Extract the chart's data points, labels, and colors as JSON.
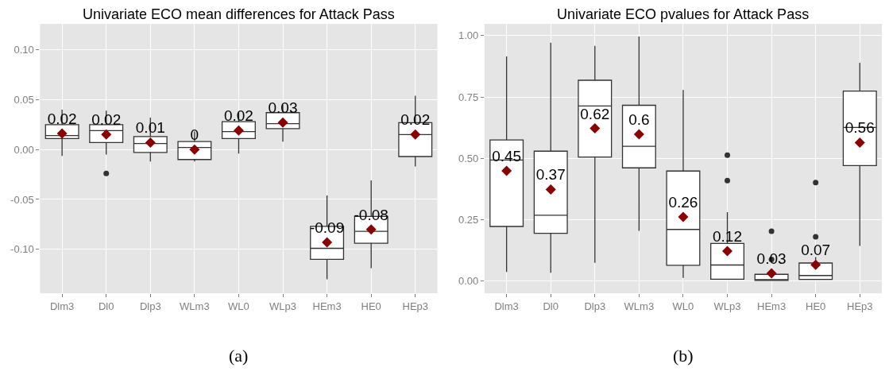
{
  "chart_data": [
    {
      "type": "box",
      "title": "Univariate ECO mean differences for Attack Pass",
      "categories": [
        "Dlm3",
        "Dl0",
        "Dlp3",
        "WLm3",
        "WL0",
        "WLp3",
        "HEm3",
        "HE0",
        "HEp3"
      ],
      "ylim": [
        -0.144,
        0.126
      ],
      "yticks": [
        {
          "value": -0.1,
          "label": "-0.10"
        },
        {
          "value": -0.05,
          "label": "-0.05"
        },
        {
          "value": 0,
          "label": "0.00"
        },
        {
          "value": 0.05,
          "label": "0.05"
        },
        {
          "value": 0.1,
          "label": "0.10"
        }
      ],
      "grid": true,
      "annotations": [
        "(a)"
      ],
      "series": [
        {
          "color": "#333333",
          "boxes": [
            {
              "low": -0.0065,
              "q1": 0.011,
              "median": 0.014,
              "q3": 0.025,
              "high": 0.04
            },
            {
              "low": -0.005,
              "q1": 0.007,
              "median": 0.019,
              "q3": 0.025,
              "high": 0.039,
              "outliers": [
                -0.024
              ]
            },
            {
              "low": -0.012,
              "q1": -0.003,
              "median": 0.006,
              "q3": 0.013,
              "high": 0.032
            },
            {
              "low": -0.012,
              "q1": -0.01,
              "median": 0.002,
              "q3": 0.008,
              "high": 0.018
            },
            {
              "low": -0.004,
              "q1": 0.011,
              "median": 0.018,
              "q3": 0.028,
              "high": 0.037
            },
            {
              "low": 0.008,
              "q1": 0.021,
              "median": 0.026,
              "q3": 0.037,
              "high": 0.045
            },
            {
              "low": -0.13,
              "q1": -0.11,
              "median": -0.099,
              "q3": -0.077,
              "high": -0.046
            },
            {
              "low": -0.119,
              "q1": -0.094,
              "median": -0.082,
              "q3": -0.067,
              "high": -0.031
            },
            {
              "low": -0.017,
              "q1": -0.007,
              "median": 0.015,
              "q3": 0.027,
              "high": 0.054
            }
          ]
        },
        {
          "type": "scatter",
          "color": "#8b0000",
          "marker": "diamond",
          "values": [
            0.016,
            0.015,
            0.007,
            0.0,
            0.019,
            0.027,
            -0.093,
            -0.08,
            0.015
          ],
          "value_labels": [
            "0.02",
            "0.02",
            "0.01",
            "0",
            "0.02",
            "0.03",
            "-0.09",
            "-0.08",
            "0.02"
          ]
        }
      ]
    },
    {
      "type": "box",
      "title": "Univariate ECO pvalues for Attack Pass",
      "categories": [
        "Dlm3",
        "Dl0",
        "Dlp3",
        "WLm3",
        "WL0",
        "WLp3",
        "HEm3",
        "HE0",
        "HEp3"
      ],
      "ylim": [
        -0.05,
        1.048
      ],
      "yticks": [
        {
          "value": 0,
          "label": "0.00"
        },
        {
          "value": 0.25,
          "label": "0.25"
        },
        {
          "value": 0.5,
          "label": "0.50"
        },
        {
          "value": 0.75,
          "label": "0.75"
        },
        {
          "value": 1,
          "label": "1.00"
        }
      ],
      "grid": true,
      "annotations": [
        "(b)"
      ],
      "series": [
        {
          "color": "#333333",
          "boxes": [
            {
              "low": 0.037,
              "q1": 0.222,
              "median": 0.493,
              "q3": 0.575,
              "high": 0.915
            },
            {
              "low": 0.033,
              "q1": 0.194,
              "median": 0.268,
              "q3": 0.529,
              "high": 0.971
            },
            {
              "low": 0.074,
              "q1": 0.505,
              "median": 0.713,
              "q3": 0.818,
              "high": 0.958
            },
            {
              "low": 0.204,
              "q1": 0.461,
              "median": 0.549,
              "q3": 0.716,
              "high": 0.996
            },
            {
              "low": 0.012,
              "q1": 0.064,
              "median": 0.21,
              "q3": 0.448,
              "high": 0.778
            },
            {
              "low": 0.007,
              "q1": 0.007,
              "median": 0.065,
              "q3": 0.153,
              "high": 0.28,
              "outliers": [
                0.513,
                0.409
              ]
            },
            {
              "low": 0.001,
              "q1": 0.002,
              "median": 0.005,
              "q3": 0.027,
              "high": 0.05,
              "outliers": [
                0.203,
                0.088
              ]
            },
            {
              "low": 0.005,
              "q1": 0.006,
              "median": 0.022,
              "q3": 0.073,
              "high": 0.097,
              "outliers": [
                0.401,
                0.18
              ]
            },
            {
              "low": 0.143,
              "q1": 0.47,
              "median": 0.626,
              "q3": 0.774,
              "high": 0.889
            }
          ]
        },
        {
          "type": "scatter",
          "color": "#8b0000",
          "marker": "diamond",
          "values": [
            0.449,
            0.373,
            0.622,
            0.598,
            0.261,
            0.122,
            0.031,
            0.066,
            0.564
          ],
          "value_labels": [
            "0.45",
            "0.37",
            "0.62",
            "0.6",
            "0.26",
            "0.12",
            "0.03",
            "0.07",
            "0.56"
          ]
        }
      ]
    }
  ]
}
